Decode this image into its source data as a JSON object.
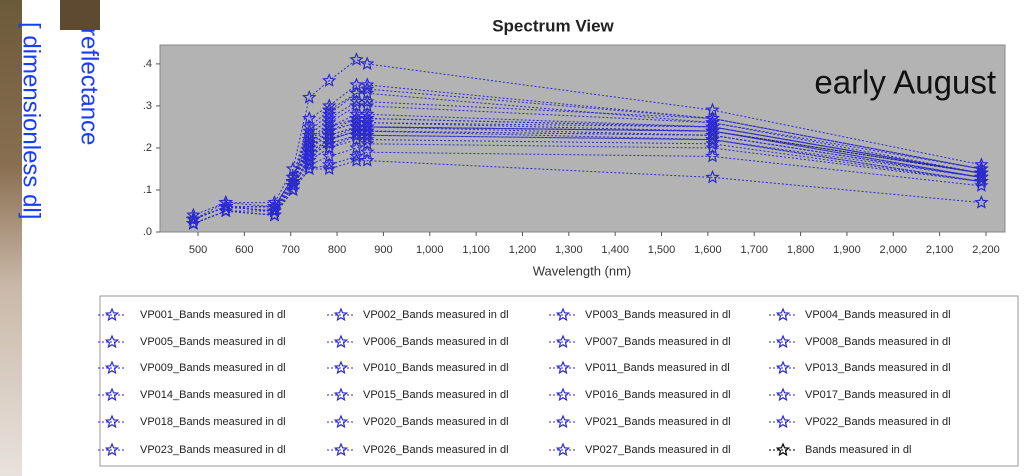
{
  "chart_data": {
    "type": "line",
    "title": "Spectrum View",
    "axis_note": [
      "reflectance",
      "[ dimensionless dl]"
    ],
    "annotation": "early August",
    "x_label": "Wavelength (nm)",
    "x": [
      490,
      560,
      665,
      705,
      740,
      783,
      842,
      865,
      1610,
      2190
    ],
    "xlim": [
      418,
      2241
    ],
    "xticks": [
      500,
      600,
      700,
      800,
      900,
      {
        "value": 1000,
        "label": "1,000"
      },
      {
        "value": 1100,
        "label": "1,100"
      },
      {
        "value": 1200,
        "label": "1,200"
      },
      {
        "value": 1300,
        "label": "1,300"
      },
      {
        "value": 1400,
        "label": "1,400"
      },
      {
        "value": 1500,
        "label": "1,500"
      },
      {
        "value": 1600,
        "label": "1,600"
      },
      {
        "value": 1700,
        "label": "1,700"
      },
      {
        "value": 1800,
        "label": "1,800"
      },
      {
        "value": 1900,
        "label": "1,900"
      },
      {
        "value": 2000,
        "label": "2,000"
      },
      {
        "value": 2100,
        "label": "2,100"
      },
      {
        "value": 2200,
        "label": "2,200"
      }
    ],
    "ylim": [
      0,
      0.445
    ],
    "yticks": [
      {
        "value": 0,
        "label": ".0"
      },
      {
        "value": 0.1,
        "label": ".1"
      },
      {
        "value": 0.2,
        "label": ".2"
      },
      {
        "value": 0.3,
        "label": ".3"
      },
      {
        "value": 0.4,
        "label": ".4"
      }
    ],
    "series": [
      {
        "name": "VP001_Bands measured in dl",
        "color": "#2a2ad0",
        "values": [
          0.03,
          0.06,
          0.05,
          0.12,
          0.2,
          0.24,
          0.26,
          0.26,
          0.24,
          0.14
        ]
      },
      {
        "name": "VP002_Bands measured in dl",
        "color": "#2a2ad0",
        "values": [
          0.02,
          0.05,
          0.04,
          0.11,
          0.18,
          0.22,
          0.24,
          0.25,
          0.23,
          0.13
        ]
      },
      {
        "name": "VP003_Bands measured in dl",
        "color": "#2a2ad0",
        "values": [
          0.04,
          0.07,
          0.07,
          0.15,
          0.32,
          0.36,
          0.41,
          0.4,
          0.29,
          0.16
        ]
      },
      {
        "name": "VP004_Bands measured in dl",
        "color": "#2a2ad0",
        "values": [
          0.03,
          0.06,
          0.06,
          0.13,
          0.27,
          0.3,
          0.35,
          0.35,
          0.27,
          0.15
        ]
      },
      {
        "name": "VP005_Bands measured in dl",
        "color": "#2a2ad0",
        "values": [
          0.03,
          0.06,
          0.06,
          0.12,
          0.22,
          0.26,
          0.3,
          0.3,
          0.26,
          0.14
        ]
      },
      {
        "name": "VP006_Bands measured in dl",
        "color": "#2a2ad0",
        "values": [
          0.02,
          0.05,
          0.04,
          0.1,
          0.16,
          0.18,
          0.2,
          0.21,
          0.2,
          0.12
        ]
      },
      {
        "name": "VP007_Bands measured in dl",
        "color": "#2a2ad0",
        "values": [
          0.03,
          0.06,
          0.05,
          0.12,
          0.19,
          0.22,
          0.25,
          0.25,
          0.24,
          0.13
        ]
      },
      {
        "name": "VP008_Bands measured in dl",
        "color": "#2a2ad0",
        "values": [
          0.03,
          0.06,
          0.05,
          0.11,
          0.17,
          0.2,
          0.23,
          0.23,
          0.22,
          0.13
        ]
      },
      {
        "name": "VP009_Bands measured in dl",
        "color": "#2a2ad0",
        "values": [
          0.03,
          0.06,
          0.05,
          0.12,
          0.21,
          0.25,
          0.28,
          0.28,
          0.25,
          0.14
        ]
      },
      {
        "name": "VP010_Bands measured in dl",
        "color": "#2a2ad0",
        "values": [
          0.02,
          0.05,
          0.04,
          0.1,
          0.15,
          0.16,
          0.18,
          0.19,
          0.18,
          0.11
        ]
      },
      {
        "name": "VP011_Bands measured in dl",
        "color": "#2a2ad0",
        "values": [
          0.03,
          0.06,
          0.06,
          0.13,
          0.24,
          0.28,
          0.33,
          0.33,
          0.26,
          0.15
        ]
      },
      {
        "name": "VP013_Bands measured in dl",
        "color": "#2a2ad0",
        "values": [
          0.03,
          0.06,
          0.05,
          0.12,
          0.2,
          0.23,
          0.25,
          0.25,
          0.24,
          0.13
        ]
      },
      {
        "name": "VP014_Bands measured in dl",
        "color": "#2a2ad0",
        "values": [
          0.02,
          0.05,
          0.04,
          0.11,
          0.18,
          0.21,
          0.23,
          0.23,
          0.22,
          0.12
        ]
      },
      {
        "name": "VP015_Bands measured in dl",
        "color": "#2a2ad0",
        "values": [
          0.03,
          0.06,
          0.05,
          0.12,
          0.19,
          0.22,
          0.24,
          0.24,
          0.23,
          0.13
        ]
      },
      {
        "name": "VP016_Bands measured in dl",
        "color": "#2a2ad0",
        "values": [
          0.02,
          0.05,
          0.04,
          0.1,
          0.15,
          0.15,
          0.17,
          0.17,
          0.13,
          0.07
        ]
      },
      {
        "name": "VP017_Bands measured in dl",
        "color": "#2a2ad0",
        "values": [
          0.03,
          0.06,
          0.06,
          0.13,
          0.23,
          0.27,
          0.31,
          0.31,
          0.27,
          0.15
        ]
      },
      {
        "name": "VP018_Bands measured in dl",
        "color": "#2a2ad0",
        "values": [
          0.03,
          0.07,
          0.06,
          0.13,
          0.22,
          0.25,
          0.27,
          0.27,
          0.25,
          0.14
        ]
      },
      {
        "name": "VP020_Bands measured in dl",
        "color": "#2a2ad0",
        "values": [
          0.03,
          0.06,
          0.05,
          0.12,
          0.2,
          0.24,
          0.26,
          0.26,
          0.25,
          0.14
        ]
      },
      {
        "name": "VP021_Bands measured in dl",
        "color": "#2a2ad0",
        "values": [
          0.02,
          0.05,
          0.04,
          0.11,
          0.17,
          0.2,
          0.22,
          0.22,
          0.21,
          0.12
        ]
      },
      {
        "name": "VP022_Bands measured in dl",
        "color": "#2a2ad0",
        "values": [
          0.03,
          0.06,
          0.05,
          0.12,
          0.21,
          0.24,
          0.27,
          0.27,
          0.25,
          0.14
        ]
      },
      {
        "name": "VP023_Bands measured in dl",
        "color": "#2a2ad0",
        "values": [
          0.03,
          0.06,
          0.06,
          0.13,
          0.25,
          0.29,
          0.33,
          0.34,
          0.27,
          0.15
        ]
      },
      {
        "name": "VP026_Bands measured in dl",
        "color": "#2a2ad0",
        "values": [
          0.03,
          0.06,
          0.05,
          0.12,
          0.19,
          0.22,
          0.24,
          0.24,
          0.23,
          0.13
        ]
      },
      {
        "name": "VP027_Bands measured in dl",
        "color": "#2a2ad0",
        "values": [
          0.02,
          0.05,
          0.05,
          0.11,
          0.18,
          0.21,
          0.23,
          0.24,
          0.22,
          0.12
        ]
      },
      {
        "name": "Bands measured in dl",
        "color": "#000000",
        "values": [
          0.03,
          0.06,
          0.05,
          0.12,
          0.2,
          0.23,
          0.25,
          0.25,
          0.24,
          0.14
        ]
      }
    ]
  }
}
